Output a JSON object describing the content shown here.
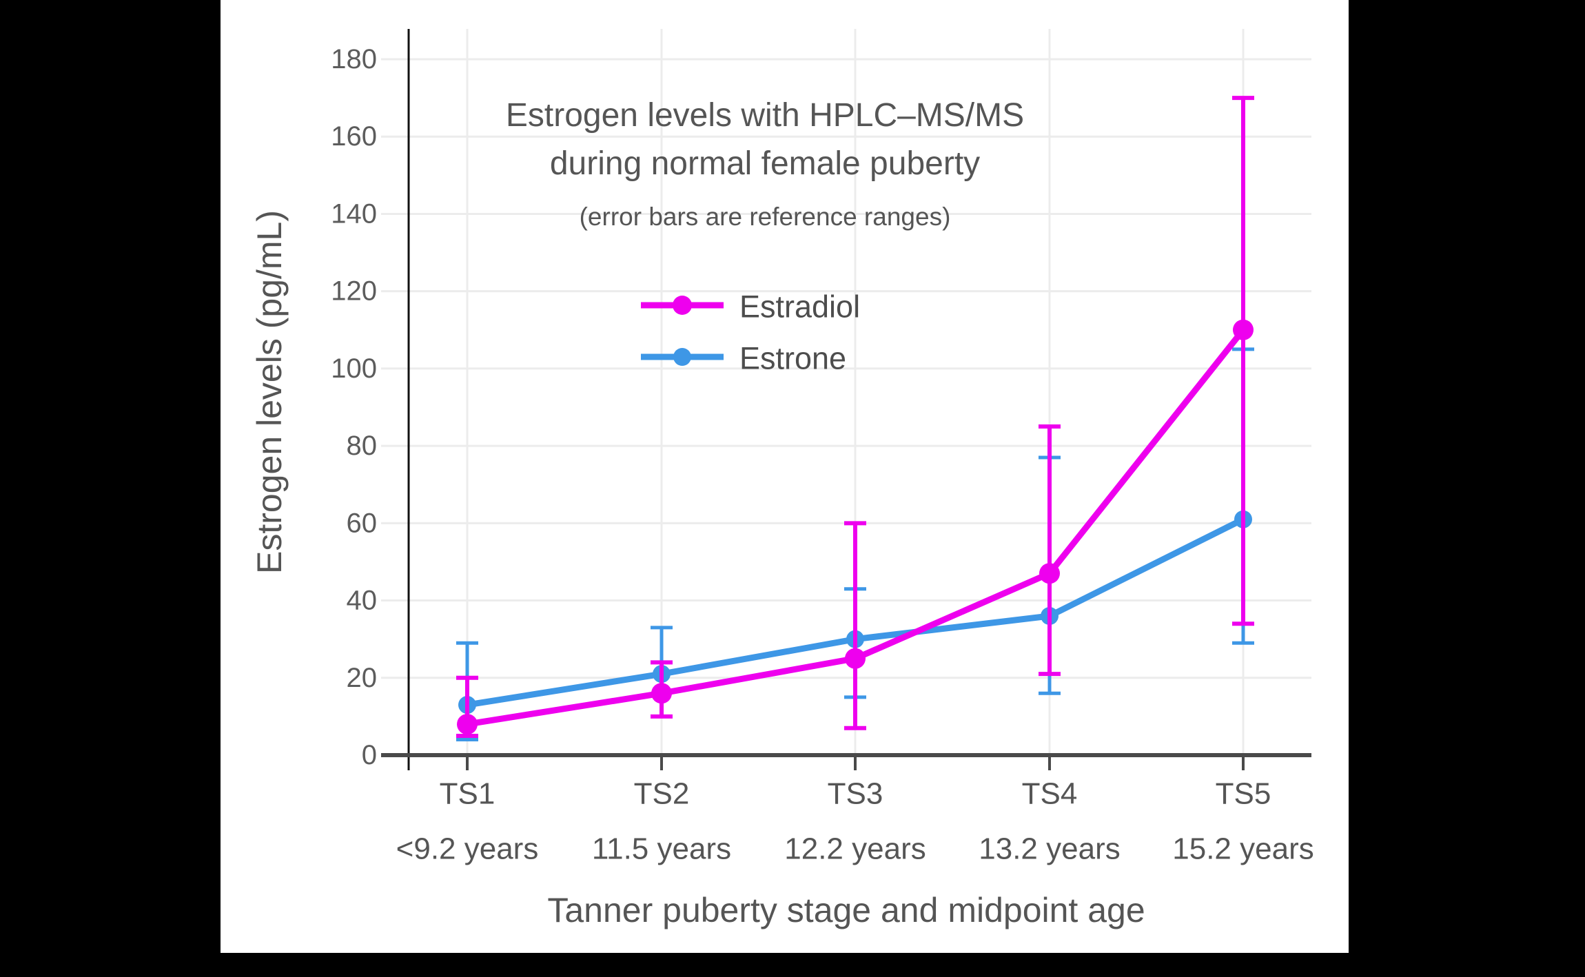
{
  "window": {
    "description": "Line chart of estrogen levels during female puberty on black letterboxed background"
  },
  "colors": {
    "letterbox": "#000000",
    "panel": "#FFFFFF",
    "grid": "#ECECEC",
    "x_axis": "#4A4A4A",
    "y_spine": "#111111",
    "title_text": "#555555",
    "tick_text": "#5C5C5C",
    "legend_text": "#4D4D4D",
    "estradiol": "#EE00EE",
    "estrone": "#3E97E6"
  },
  "chart_data": {
    "type": "line",
    "title_lines": [
      "Estrogen levels with HPLC–MS/MS",
      "during normal female puberty"
    ],
    "subtitle": "(error bars are reference ranges)",
    "xlabel": "Tanner puberty stage and midpoint age",
    "ylabel": "Estrogen levels (pg/mL)",
    "ylim": [
      0,
      190
    ],
    "y_ticks": [
      0,
      20,
      40,
      60,
      80,
      100,
      120,
      140,
      160,
      180
    ],
    "grid": "on",
    "legend_position": "inside-upper-center",
    "error_bars": "reference ranges",
    "categories": [
      {
        "stage": "TS1",
        "age": "<9.2 years"
      },
      {
        "stage": "TS2",
        "age": "11.5 years"
      },
      {
        "stage": "TS3",
        "age": "12.2 years"
      },
      {
        "stage": "TS4",
        "age": "13.2 years"
      },
      {
        "stage": "TS5",
        "age": "15.2 years"
      }
    ],
    "series": [
      {
        "name": "Estradiol",
        "color": "#EE00EE",
        "values": [
          8,
          16,
          25,
          47,
          110
        ],
        "err_low": [
          5,
          10,
          7,
          21,
          34
        ],
        "err_high": [
          20,
          24,
          60,
          85,
          170
        ]
      },
      {
        "name": "Estrone",
        "color": "#3E97E6",
        "values": [
          13,
          21,
          30,
          36,
          61
        ],
        "err_low": [
          4,
          10,
          15,
          16,
          29
        ],
        "err_high": [
          29,
          33,
          43,
          77,
          105
        ]
      }
    ]
  }
}
